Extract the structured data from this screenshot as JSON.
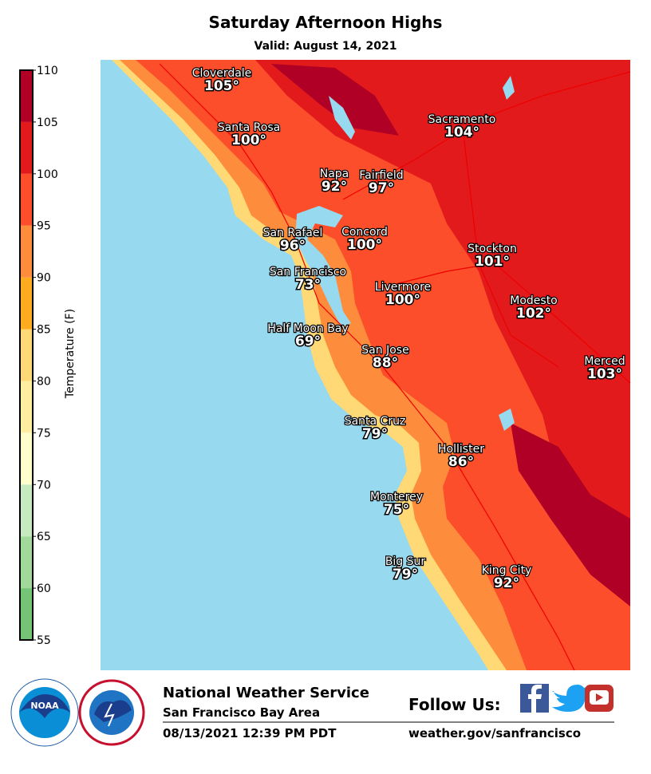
{
  "title": "Saturday Afternoon Highs",
  "subtitle": "Valid: August 14, 2021",
  "colorbar": {
    "label": "Temperature (F)",
    "ticks": [
      55,
      60,
      65,
      70,
      75,
      80,
      85,
      90,
      95,
      100,
      105,
      110
    ],
    "colors": [
      "#74c476",
      "#a1d99b",
      "#c7e9c0",
      "#ffffcc",
      "#ffeda0",
      "#fed976",
      "#fdab1f",
      "#fd8d3c",
      "#fc4e2a",
      "#e31a1c",
      "#b10026"
    ]
  },
  "cities": [
    {
      "name": "Cloverdale",
      "temp": "105°"
    },
    {
      "name": "Santa Rosa",
      "temp": "100°"
    },
    {
      "name": "Napa",
      "temp": "92°"
    },
    {
      "name": "Fairfield",
      "temp": "97°"
    },
    {
      "name": "Sacramento",
      "temp": "104°"
    },
    {
      "name": "San Rafael",
      "temp": "96°"
    },
    {
      "name": "Concord",
      "temp": "100°"
    },
    {
      "name": "San Francisco",
      "temp": "73°"
    },
    {
      "name": "Stockton",
      "temp": "101°"
    },
    {
      "name": "Livermore",
      "temp": "100°"
    },
    {
      "name": "Modesto",
      "temp": "102°"
    },
    {
      "name": "Half Moon Bay",
      "temp": "69°"
    },
    {
      "name": "San Jose",
      "temp": "88°"
    },
    {
      "name": "Merced",
      "temp": "103°"
    },
    {
      "name": "Santa Cruz",
      "temp": "79°"
    },
    {
      "name": "Hollister",
      "temp": "86°"
    },
    {
      "name": "Monterey",
      "temp": "75°"
    },
    {
      "name": "Big Sur",
      "temp": "79°"
    },
    {
      "name": "King City",
      "temp": "92°"
    }
  ],
  "footer": {
    "agency": "National Weather Service",
    "office": "San Francisco Bay Area",
    "issued": "08/13/2021 12:39 PM PDT",
    "follow": "Follow Us:",
    "url": "weather.gov/sanfrancisco",
    "noaa_logo": "NOAA"
  }
}
